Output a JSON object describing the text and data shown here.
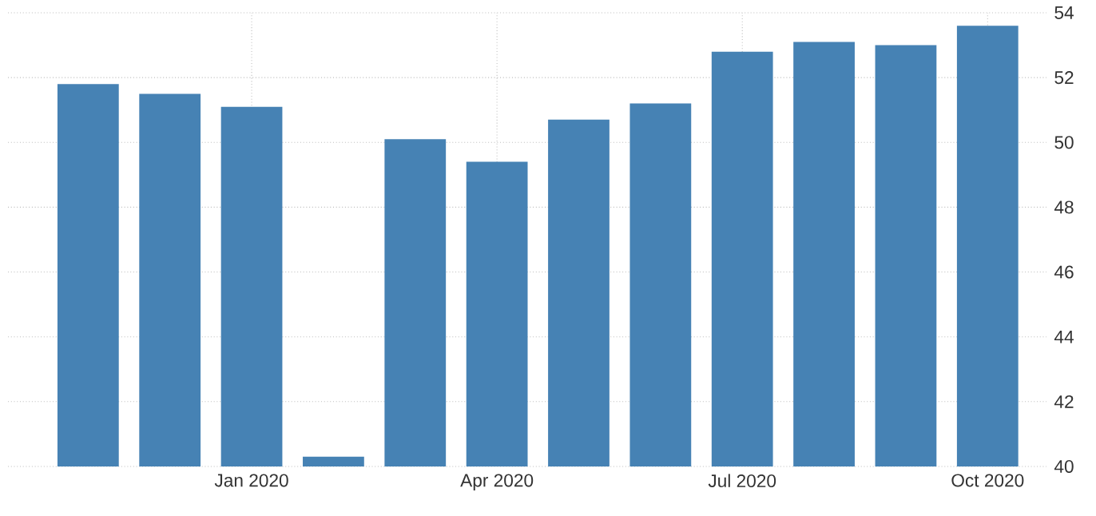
{
  "chart_data": {
    "type": "bar",
    "categories": [
      null,
      null,
      "Jan 2020",
      null,
      null,
      "Apr 2020",
      null,
      null,
      "Jul 2020",
      null,
      null,
      "Oct 2020"
    ],
    "values": [
      51.8,
      51.5,
      51.1,
      40.3,
      50.1,
      49.4,
      50.7,
      51.2,
      52.8,
      53.1,
      53.0,
      53.6
    ],
    "color": "#4682b4",
    "ylim": [
      40,
      54
    ],
    "yticks": [
      40,
      42,
      44,
      46,
      48,
      50,
      52,
      54
    ],
    "grid": true
  }
}
